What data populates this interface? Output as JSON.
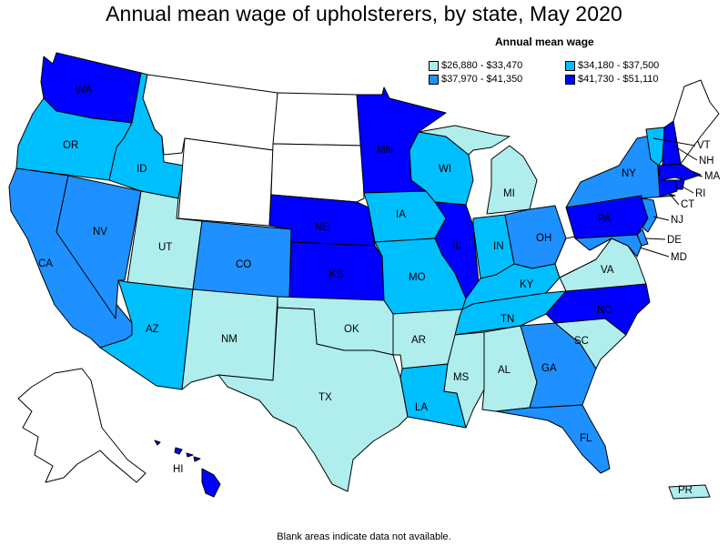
{
  "title": "Annual mean wage of upholsterers, by state, May 2020",
  "legend": {
    "title": "Annual mean wage",
    "items": [
      {
        "label": "$26,880 - $33,470",
        "color": "#b0eeee"
      },
      {
        "label": "$34,180 - $37,500",
        "color": "#00bfff"
      },
      {
        "label": "$37,970 - $41,350",
        "color": "#1e90ff"
      },
      {
        "label": "$41,730 - $51,110",
        "color": "#0000ff"
      }
    ]
  },
  "no_data_color": "#ffffff",
  "footnote": "Blank areas indicate data not available.",
  "states": {
    "WA": {
      "label": "WA",
      "bin": 3
    },
    "OR": {
      "label": "OR",
      "bin": 1
    },
    "CA": {
      "label": "CA",
      "bin": 2
    },
    "NV": {
      "label": "NV",
      "bin": 2
    },
    "ID": {
      "label": "ID",
      "bin": 1
    },
    "MT": {
      "label": "",
      "bin": -1
    },
    "WY": {
      "label": "",
      "bin": -1
    },
    "UT": {
      "label": "UT",
      "bin": 0
    },
    "AZ": {
      "label": "AZ",
      "bin": 1
    },
    "CO": {
      "label": "CO",
      "bin": 2
    },
    "NM": {
      "label": "NM",
      "bin": 0
    },
    "ND": {
      "label": "",
      "bin": -1
    },
    "SD": {
      "label": "",
      "bin": -1
    },
    "NE": {
      "label": "NE",
      "bin": 3
    },
    "KS": {
      "label": "KS",
      "bin": 3
    },
    "OK": {
      "label": "OK",
      "bin": 0
    },
    "TX": {
      "label": "TX",
      "bin": 0
    },
    "MN": {
      "label": "MN",
      "bin": 3
    },
    "IA": {
      "label": "IA",
      "bin": 1
    },
    "MO": {
      "label": "MO",
      "bin": 1
    },
    "AR": {
      "label": "AR",
      "bin": 0
    },
    "LA": {
      "label": "LA",
      "bin": 1
    },
    "WI": {
      "label": "WI",
      "bin": 1
    },
    "IL": {
      "label": "IL",
      "bin": 3
    },
    "MI": {
      "label": "MI",
      "bin": 0
    },
    "IN": {
      "label": "IN",
      "bin": 1
    },
    "OH": {
      "label": "OH",
      "bin": 2
    },
    "KY": {
      "label": "KY",
      "bin": 1
    },
    "TN": {
      "label": "TN",
      "bin": 1
    },
    "MS": {
      "label": "MS",
      "bin": 0
    },
    "AL": {
      "label": "AL",
      "bin": 0
    },
    "GA": {
      "label": "GA",
      "bin": 2
    },
    "FL": {
      "label": "FL",
      "bin": 2
    },
    "SC": {
      "label": "SC",
      "bin": 0
    },
    "NC": {
      "label": "NC",
      "bin": 3
    },
    "VA": {
      "label": "VA",
      "bin": 0
    },
    "WV": {
      "label": "",
      "bin": -1
    },
    "PA": {
      "label": "PA",
      "bin": 3
    },
    "NY": {
      "label": "NY",
      "bin": 2
    },
    "NJ": {
      "label": "NJ",
      "bin": 2
    },
    "DE": {
      "label": "DE",
      "bin": 2
    },
    "MD": {
      "label": "MD",
      "bin": 2
    },
    "CT": {
      "label": "CT",
      "bin": 3
    },
    "RI": {
      "label": "RI",
      "bin": 3
    },
    "MA": {
      "label": "MA",
      "bin": 3
    },
    "VT": {
      "label": "VT",
      "bin": 1
    },
    "NH": {
      "label": "NH",
      "bin": 3
    },
    "ME": {
      "label": "",
      "bin": -1
    },
    "AK": {
      "label": "",
      "bin": -1
    },
    "HI": {
      "label": "HI",
      "bin": 3
    },
    "PR": {
      "label": "PR",
      "bin": 0
    }
  }
}
